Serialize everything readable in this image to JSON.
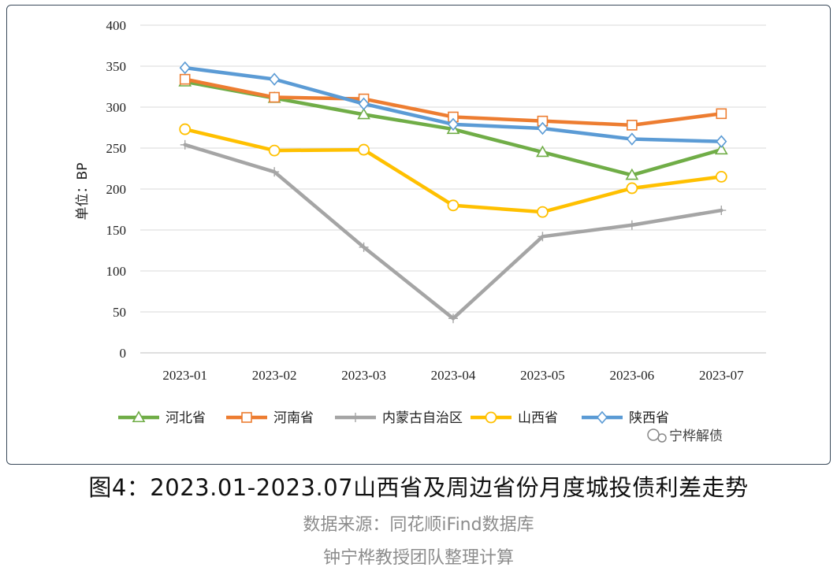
{
  "chart_data": {
    "type": "line",
    "title": "图4：2023.01-2023.07山西省及周边省份月度城投债利差走势",
    "xlabel": "",
    "ylabel": "单位：BP",
    "ylim": [
      0,
      400
    ],
    "yticks": [
      0,
      50,
      100,
      150,
      200,
      250,
      300,
      350,
      400
    ],
    "grid": true,
    "legend_position": "bottom",
    "categories": [
      "2023-01",
      "2023-02",
      "2023-03",
      "2023-04",
      "2023-05",
      "2023-06",
      "2023-07"
    ],
    "series": [
      {
        "name": "河北省",
        "color": "#70ad47",
        "marker": "triangle",
        "values": [
          331,
          311,
          291,
          273,
          245,
          217,
          248
        ]
      },
      {
        "name": "河南省",
        "color": "#ed7d31",
        "marker": "square",
        "values": [
          334,
          312,
          310,
          288,
          283,
          278,
          292
        ]
      },
      {
        "name": "内蒙古自治区",
        "color": "#a5a5a5",
        "marker": "plus",
        "values": [
          254,
          221,
          129,
          42,
          142,
          156,
          174
        ]
      },
      {
        "name": "山西省",
        "color": "#ffc000",
        "marker": "circle",
        "values": [
          273,
          247,
          248,
          180,
          172,
          201,
          215
        ]
      },
      {
        "name": "陕西省",
        "color": "#5b9bd5",
        "marker": "diamond",
        "values": [
          348,
          334,
          304,
          279,
          274,
          261,
          258
        ]
      }
    ]
  },
  "watermark": "宁桦解债",
  "caption": {
    "title": "图4：2023.01-2023.07山西省及周边省份月度城投债利差走势",
    "source": "数据来源：同花顺iFind数据库",
    "author": "钟宁桦教授团队整理计算"
  }
}
